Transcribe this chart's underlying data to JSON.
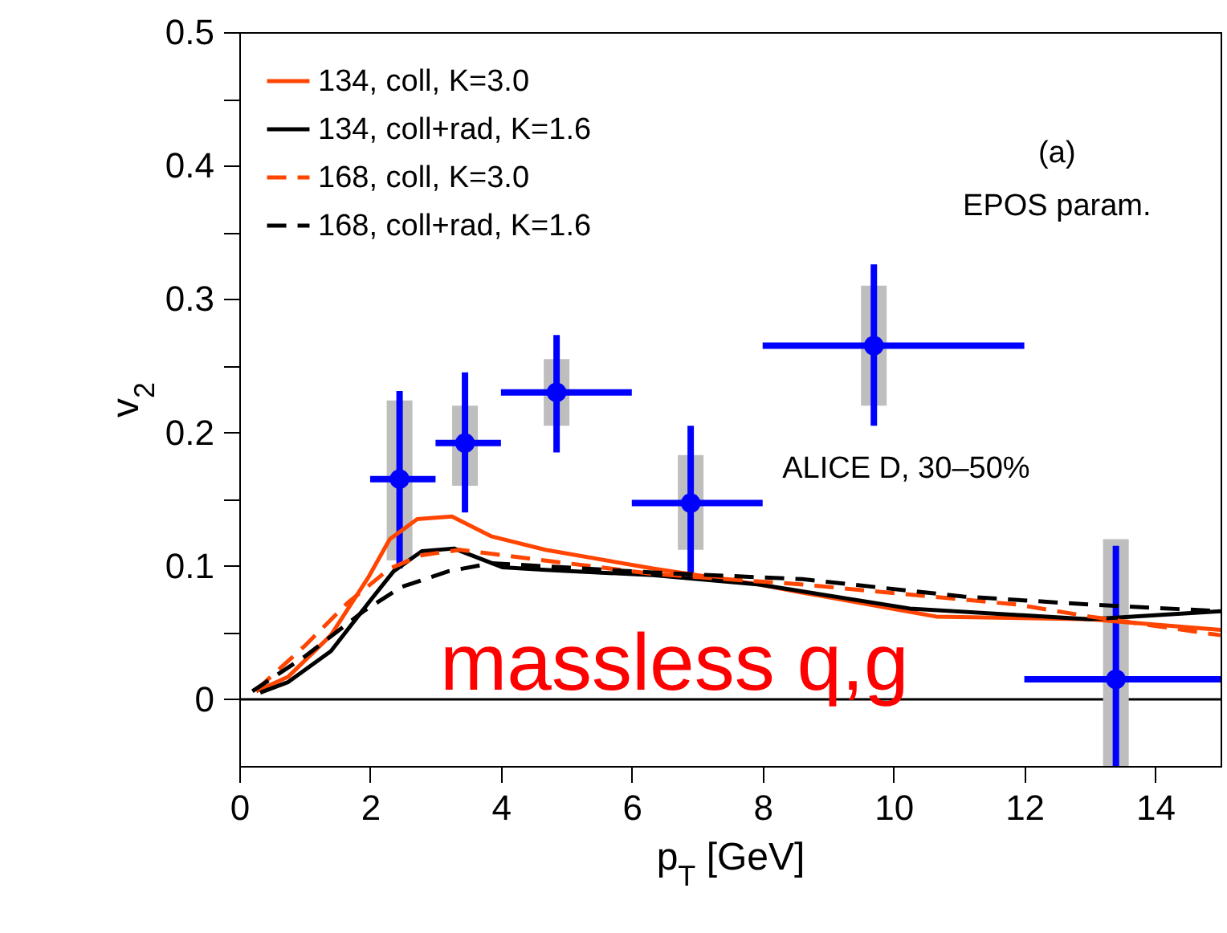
{
  "chart_data": {
    "type": "line",
    "xlabel": "p$_{T}$ [GeV]",
    "ylabel": "v$_{2}$",
    "xlim": [
      0,
      15
    ],
    "xticks": [
      0,
      2,
      4,
      6,
      8,
      10,
      12,
      14
    ],
    "ylim": [
      -0.05,
      0.5
    ],
    "yticks": [
      0,
      {
        "value": 0.05,
        "label": null
      },
      0.1,
      {
        "value": 0.15,
        "label": null
      },
      0.2,
      {
        "value": 0.25,
        "label": null
      },
      0.3,
      {
        "value": 0.35,
        "label": null
      },
      0.4,
      {
        "value": 0.45,
        "label": null
      },
      0.5
    ],
    "legend": "top left",
    "ref_lines": [
      {
        "axis": "y",
        "value": 0,
        "color": "#000000"
      }
    ],
    "annotations": [
      "(a)",
      "EPOS param.",
      "massless q,g"
    ],
    "series": [
      {
        "name": "134, coll, K=3.0",
        "color": "#ff4500",
        "line_style": "solid",
        "x": [
          0.26,
          0.75,
          1.4,
          1.98,
          2.3,
          2.72,
          3.25,
          3.86,
          4.68,
          6.32,
          7.95,
          8.6,
          10.65,
          13.0,
          15
        ],
        "values": [
          0.006,
          0.017,
          0.048,
          0.092,
          0.12,
          0.135,
          0.137,
          0.122,
          0.112,
          0.098,
          0.086,
          0.08,
          0.062,
          0.06,
          0.052
        ]
      },
      {
        "name": "134, coll+rad, K=1.6",
        "color": "#000000",
        "line_style": "solid",
        "x": [
          0.32,
          0.75,
          1.4,
          2.05,
          2.36,
          2.79,
          3.28,
          4.02,
          4.68,
          6.32,
          7.95,
          10.25,
          13.0,
          15
        ],
        "values": [
          0.005,
          0.013,
          0.036,
          0.077,
          0.096,
          0.111,
          0.113,
          0.099,
          0.097,
          0.093,
          0.086,
          0.068,
          0.06,
          0.066
        ]
      },
      {
        "name": "168, coll, K=3.0",
        "color": "#ff4500",
        "line_style": "dashed",
        "x": [
          0.26,
          1.0,
          1.65,
          2.3,
          2.79,
          3.37,
          4.02,
          6.32,
          8.61,
          11.88,
          13.0,
          15
        ],
        "values": [
          0.007,
          0.04,
          0.072,
          0.098,
          0.108,
          0.112,
          0.108,
          0.094,
          0.086,
          0.071,
          0.062,
          0.048
        ]
      },
      {
        "name": "168, coll+rad, K=1.6",
        "color": "#000000",
        "line_style": "dashed",
        "x": [
          0.2,
          1.0,
          1.9,
          2.47,
          3.2,
          3.86,
          6.32,
          8.61,
          11.07,
          13.0,
          15
        ],
        "values": [
          0.006,
          0.032,
          0.066,
          0.084,
          0.096,
          0.102,
          0.095,
          0.09,
          0.077,
          0.071,
          0.066
        ]
      },
      {
        "type": "bar",
        "color": "#bebebe",
        "x": [
          2.45,
          3.45,
          4.85,
          6.9,
          9.7,
          13.4
        ],
        "base": [
          0.104,
          0.16,
          0.205,
          0.112,
          0.22,
          -0.05
        ],
        "values": [
          0.12,
          0.06,
          0.05,
          0.071,
          0.09,
          0.17
        ]
      },
      {
        "type": "scatter",
        "name": "ALICE D, 30–50%",
        "color": "#0000ff",
        "marker": "circle",
        "x": [
          2.45,
          3.45,
          4.85,
          6.9,
          9.7,
          13.4
        ],
        "values": [
          0.165,
          0.192,
          0.23,
          0.147,
          0.265,
          0.015
        ],
        "errors": [
          [
            0.098,
            0.231
          ],
          [
            0.14,
            0.245
          ],
          [
            0.185,
            0.273
          ],
          [
            0.09,
            0.205
          ],
          [
            0.205,
            0.326
          ],
          [
            -0.05,
            0.115
          ]
        ],
        "xerrors": [
          [
            2,
            3
          ],
          [
            3,
            4
          ],
          [
            4,
            6
          ],
          [
            6,
            8
          ],
          [
            8,
            12
          ],
          [
            12,
            15
          ]
        ]
      }
    ]
  }
}
